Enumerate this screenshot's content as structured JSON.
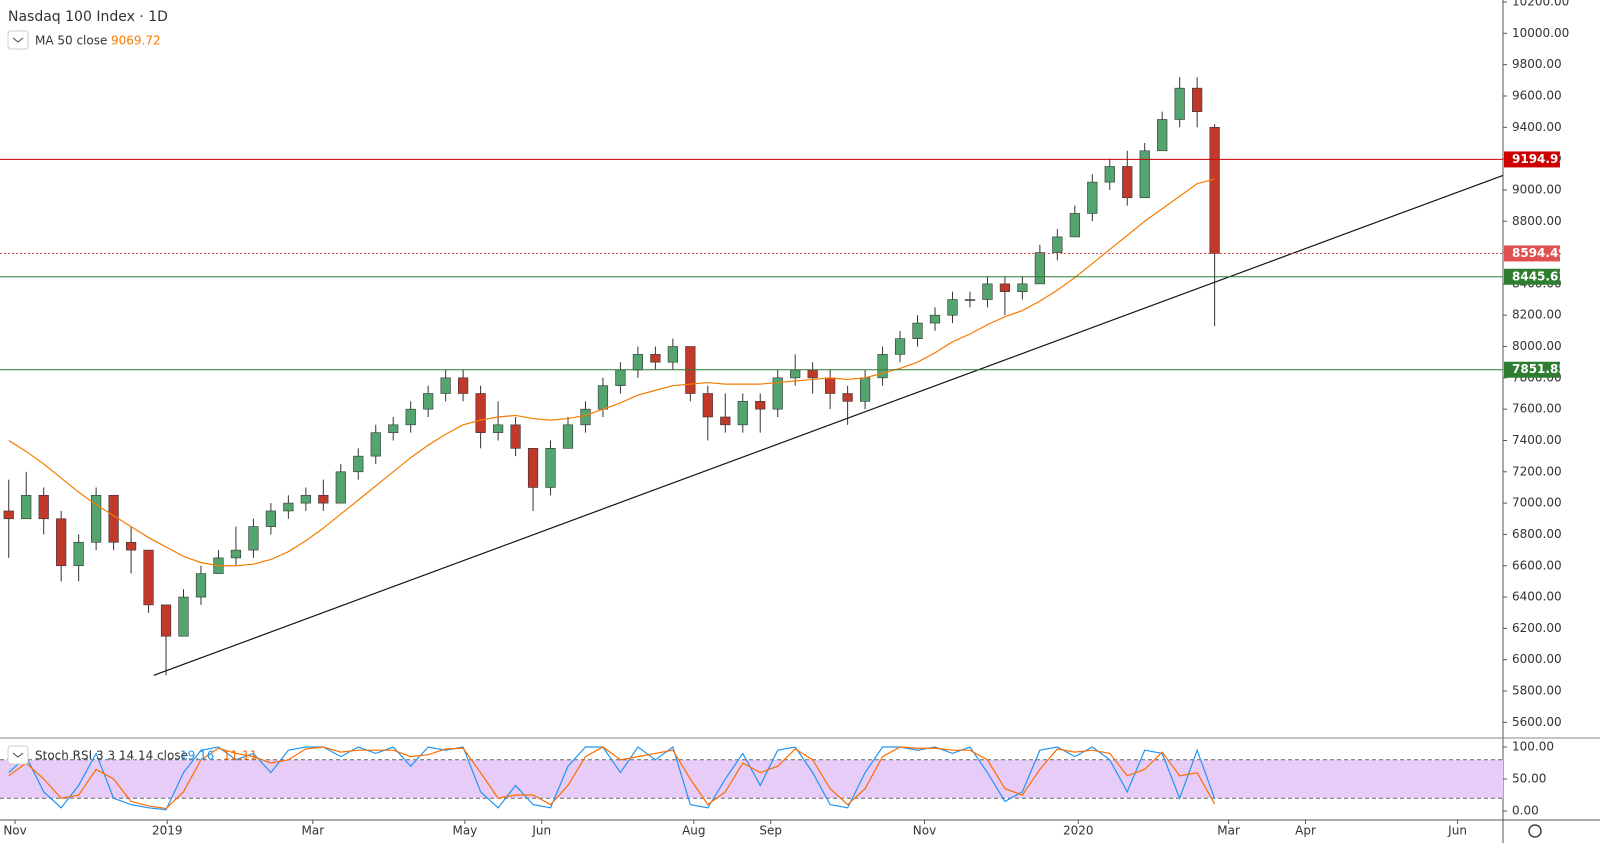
{
  "chart_data": [
    {
      "type": "candlestick",
      "title": "Nasdaq 100 Index · 1D",
      "xlim": [
        -0.5,
        85.5
      ],
      "xticks": [
        {
          "value": 0.36,
          "label": "Nov"
        },
        {
          "value": 9.07,
          "label": "2019"
        },
        {
          "value": 17.4,
          "label": "Mar"
        },
        {
          "value": 26.1,
          "label": "May"
        },
        {
          "value": 30.5,
          "label": "Jun"
        },
        {
          "value": 39.2,
          "label": "Aug"
        },
        {
          "value": 43.6,
          "label": "Sep"
        },
        {
          "value": 52.4,
          "label": "Nov"
        },
        {
          "value": 61.2,
          "label": "2020"
        },
        {
          "value": 69.8,
          "label": "Mar"
        },
        {
          "value": 74.2,
          "label": "Apr"
        },
        {
          "value": 82.9,
          "label": "Jun"
        }
      ],
      "ylim": [
        5500,
        10213
      ],
      "yticks": [
        {
          "value": 5600,
          "label": "5600.00"
        },
        {
          "value": 5800,
          "label": "5800.00"
        },
        {
          "value": 6000,
          "label": "6000.00"
        },
        {
          "value": 6200,
          "label": "6200.00"
        },
        {
          "value": 6400,
          "label": "6400.00"
        },
        {
          "value": 6600,
          "label": "6600.00"
        },
        {
          "value": 6800,
          "label": "6800.00"
        },
        {
          "value": 7000,
          "label": "7000.00"
        },
        {
          "value": 7200,
          "label": "7200.00"
        },
        {
          "value": 7400,
          "label": "7400.00"
        },
        {
          "value": 7600,
          "label": "7600.00"
        },
        {
          "value": 7800,
          "label": "7800.00"
        },
        {
          "value": 8000,
          "label": "8000.00"
        },
        {
          "value": 8200,
          "label": "8200.00"
        },
        {
          "value": 8400,
          "label": "8400.00"
        },
        {
          "value": 8600,
          "label": "8600.00"
        },
        {
          "value": 8800,
          "label": "8800.00"
        },
        {
          "value": 9000,
          "label": "9000.00"
        },
        {
          "value": 9200,
          "label": "9200.00"
        },
        {
          "value": 9400,
          "label": "9400.00"
        },
        {
          "value": 9600,
          "label": "9600.00"
        },
        {
          "value": 9800,
          "label": "9800.00"
        },
        {
          "value": 10000,
          "label": "10000.00"
        },
        {
          "value": 10200,
          "label": "10200.00"
        }
      ],
      "up_color": "#53a46e",
      "down_color": "#c0392b",
      "ohlc": [
        [
          6950,
          7150,
          6650,
          6900
        ],
        [
          6900,
          7200,
          6900,
          7050
        ],
        [
          7050,
          7100,
          6800,
          6900
        ],
        [
          6900,
          6950,
          6500,
          6600
        ],
        [
          6600,
          6800,
          6500,
          6750
        ],
        [
          6750,
          7100,
          6700,
          7050
        ],
        [
          7050,
          7050,
          6700,
          6750
        ],
        [
          6750,
          6850,
          6550,
          6700
        ],
        [
          6700,
          6700,
          6300,
          6350
        ],
        [
          6350,
          6350,
          5900,
          6150
        ],
        [
          6150,
          6450,
          6150,
          6400
        ],
        [
          6400,
          6600,
          6350,
          6550
        ],
        [
          6550,
          6700,
          6550,
          6650
        ],
        [
          6650,
          6850,
          6600,
          6700
        ],
        [
          6700,
          6900,
          6650,
          6850
        ],
        [
          6850,
          7000,
          6800,
          6950
        ],
        [
          6950,
          7050,
          6900,
          7000
        ],
        [
          7000,
          7100,
          6950,
          7050
        ],
        [
          7050,
          7150,
          6950,
          7000
        ],
        [
          7000,
          7250,
          7000,
          7200
        ],
        [
          7200,
          7350,
          7150,
          7300
        ],
        [
          7300,
          7500,
          7250,
          7450
        ],
        [
          7450,
          7550,
          7400,
          7500
        ],
        [
          7500,
          7650,
          7450,
          7600
        ],
        [
          7600,
          7750,
          7550,
          7700
        ],
        [
          7700,
          7850,
          7650,
          7800
        ],
        [
          7800,
          7850,
          7650,
          7700
        ],
        [
          7700,
          7750,
          7350,
          7450
        ],
        [
          7450,
          7650,
          7400,
          7500
        ],
        [
          7500,
          7550,
          7300,
          7350
        ],
        [
          7350,
          7350,
          6950,
          7100
        ],
        [
          7100,
          7400,
          7050,
          7350
        ],
        [
          7350,
          7550,
          7350,
          7500
        ],
        [
          7500,
          7650,
          7450,
          7600
        ],
        [
          7600,
          7800,
          7550,
          7750
        ],
        [
          7750,
          7900,
          7700,
          7850
        ],
        [
          7850,
          8000,
          7800,
          7950
        ],
        [
          7950,
          8000,
          7850,
          7900
        ],
        [
          7900,
          8050,
          7850,
          8000
        ],
        [
          8000,
          8000,
          7650,
          7700
        ],
        [
          7700,
          7750,
          7400,
          7550
        ],
        [
          7550,
          7700,
          7450,
          7500
        ],
        [
          7500,
          7700,
          7450,
          7650
        ],
        [
          7650,
          7700,
          7450,
          7600
        ],
        [
          7600,
          7850,
          7550,
          7800
        ],
        [
          7800,
          7950,
          7750,
          7850
        ],
        [
          7850,
          7900,
          7700,
          7800
        ],
        [
          7800,
          7850,
          7600,
          7700
        ],
        [
          7700,
          7750,
          7500,
          7650
        ],
        [
          7650,
          7850,
          7600,
          7800
        ],
        [
          7800,
          8000,
          7750,
          7950
        ],
        [
          7950,
          8100,
          7900,
          8050
        ],
        [
          8050,
          8200,
          8000,
          8150
        ],
        [
          8150,
          8250,
          8100,
          8200
        ],
        [
          8200,
          8350,
          8150,
          8300
        ],
        [
          8300,
          8350,
          8250,
          8300
        ],
        [
          8300,
          8450,
          8250,
          8400
        ],
        [
          8400,
          8450,
          8200,
          8350
        ],
        [
          8350,
          8450,
          8300,
          8400
        ],
        [
          8400,
          8650,
          8400,
          8600
        ],
        [
          8600,
          8750,
          8550,
          8700
        ],
        [
          8700,
          8900,
          8700,
          8850
        ],
        [
          8850,
          9100,
          8800,
          9050
        ],
        [
          9050,
          9200,
          9000,
          9150
        ],
        [
          9150,
          9250,
          8900,
          8950
        ],
        [
          8950,
          9300,
          8950,
          9250
        ],
        [
          9250,
          9500,
          9250,
          9450
        ],
        [
          9450,
          9720,
          9400,
          9650
        ],
        [
          9650,
          9720,
          9400,
          9500
        ],
        [
          9400,
          9420,
          8130,
          8594.49
        ]
      ],
      "ma": {
        "name": "MA 50 close",
        "color": "#f57c00",
        "values": [
          7400,
          7330,
          7250,
          7160,
          7070,
          6990,
          6920,
          6850,
          6780,
          6720,
          6660,
          6620,
          6600,
          6600,
          6610,
          6640,
          6690,
          6760,
          6840,
          6930,
          7020,
          7110,
          7200,
          7290,
          7370,
          7440,
          7500,
          7530,
          7550,
          7560,
          7540,
          7530,
          7540,
          7560,
          7600,
          7640,
          7690,
          7720,
          7750,
          7760,
          7770,
          7760,
          7760,
          7760,
          7770,
          7780,
          7790,
          7800,
          7790,
          7800,
          7830,
          7860,
          7900,
          7960,
          8030,
          8080,
          8140,
          8190,
          8230,
          8290,
          8360,
          8440,
          8530,
          8620,
          8710,
          8800,
          8880,
          8960,
          9040,
          9069.72
        ]
      },
      "hlines": [
        {
          "value": 9194.91,
          "color": "#cc0000",
          "style": "solid"
        },
        {
          "value": 8594.49,
          "color": "#e05050",
          "style": "dotted"
        },
        {
          "value": 8445.61,
          "color": "#2e7d32",
          "style": "solid"
        },
        {
          "value": 7851.85,
          "color": "#2e7d32",
          "style": "solid"
        }
      ],
      "trendline": {
        "x": [
          8.3,
          85.5
        ],
        "y": [
          5900,
          9093
        ]
      }
    },
    {
      "type": "line",
      "title": "Stoch RSI 3 3 14 14 close",
      "ylim": [
        -14,
        112.5
      ],
      "yticks": [
        {
          "value": 0,
          "label": "0.00"
        },
        {
          "value": 50,
          "label": "50.00"
        },
        {
          "value": 100,
          "label": "100.00"
        }
      ],
      "band": [
        20,
        80
      ],
      "band_color": "#e6ccf7",
      "series": [
        {
          "color": "#2196f3",
          "values": [
            60,
            85,
            30,
            5,
            40,
            90,
            20,
            10,
            5,
            2,
            60,
            95,
            100,
            80,
            90,
            60,
            95,
            100,
            100,
            85,
            100,
            90,
            100,
            70,
            100,
            95,
            100,
            30,
            5,
            40,
            10,
            5,
            70,
            100,
            100,
            60,
            100,
            80,
            100,
            10,
            5,
            50,
            90,
            40,
            95,
            100,
            60,
            10,
            5,
            60,
            100,
            100,
            95,
            100,
            90,
            100,
            60,
            15,
            30,
            95,
            100,
            85,
            100,
            80,
            30,
            95,
            90,
            20,
            95,
            19.16
          ]
        },
        {
          "color": "#ff6d00",
          "values": [
            55,
            75,
            50,
            20,
            25,
            65,
            50,
            15,
            8,
            4,
            30,
            80,
            98,
            90,
            85,
            75,
            80,
            97,
            100,
            92,
            95,
            95,
            95,
            85,
            88,
            97,
            98,
            60,
            20,
            25,
            25,
            10,
            40,
            85,
            100,
            80,
            85,
            90,
            95,
            50,
            10,
            30,
            75,
            60,
            70,
            97,
            80,
            35,
            10,
            35,
            85,
            100,
            98,
            98,
            95,
            95,
            80,
            35,
            25,
            65,
            97,
            92,
            95,
            90,
            55,
            65,
            92,
            55,
            60,
            11.11
          ]
        }
      ]
    }
  ]
}
